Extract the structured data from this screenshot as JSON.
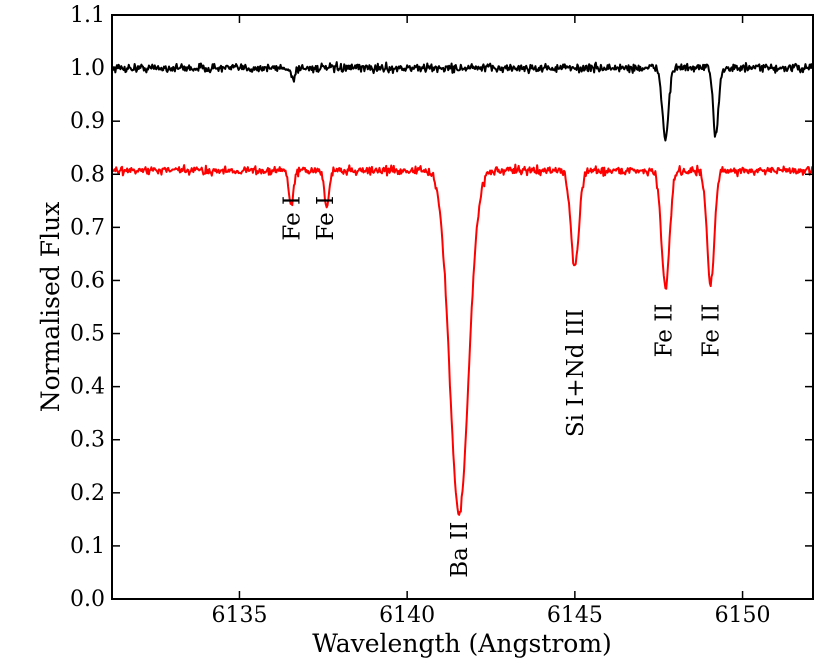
{
  "chart_data": {
    "type": "line",
    "title": "",
    "xlabel": "Wavelength (Angstrom)",
    "ylabel": "Normalised Flux",
    "xlim": [
      6131.2,
      6152.1
    ],
    "ylim": [
      0.0,
      1.1
    ],
    "x_ticks": [
      6135,
      6140,
      6145,
      6150
    ],
    "x_tick_labels": [
      "6135",
      "6140",
      "6145",
      "6150"
    ],
    "y_ticks": [
      0.0,
      0.1,
      0.2,
      0.3,
      0.4,
      0.5,
      0.6,
      0.7,
      0.8,
      0.9,
      1.0,
      1.1
    ],
    "y_tick_labels": [
      "0.0",
      "0.1",
      "0.2",
      "0.3",
      "0.4",
      "0.5",
      "0.6",
      "0.7",
      "0.8",
      "0.9",
      "1.0",
      "1.1"
    ],
    "grid": false,
    "series": [
      {
        "name": "upper spectrum",
        "color": "#000000",
        "continuum": 1.0,
        "noise": 0.008,
        "lines": [
          {
            "center": 6136.6,
            "depth": 0.02,
            "sigma": 0.06
          },
          {
            "center": 6147.7,
            "depth": 0.135,
            "sigma": 0.09
          },
          {
            "center": 6149.2,
            "depth": 0.125,
            "sigma": 0.08
          }
        ]
      },
      {
        "name": "lower spectrum",
        "color": "#ff0000",
        "continuum": 0.807,
        "noise": 0.008,
        "lines": [
          {
            "center": 6136.55,
            "depth": 0.065,
            "sigma": 0.07
          },
          {
            "center": 6137.6,
            "depth": 0.07,
            "sigma": 0.07
          },
          {
            "center": 6141.55,
            "depth": 0.645,
            "sigma": 0.28
          },
          {
            "center": 6145.0,
            "depth": 0.185,
            "sigma": 0.12
          },
          {
            "center": 6147.7,
            "depth": 0.22,
            "sigma": 0.12
          },
          {
            "center": 6149.05,
            "depth": 0.215,
            "sigma": 0.11
          }
        ]
      }
    ],
    "annotations": [
      {
        "text": "Fe I",
        "x": 6136.55,
        "y": 0.675
      },
      {
        "text": "Fe I",
        "x": 6137.55,
        "y": 0.675
      },
      {
        "text": "Ba II",
        "x": 6141.55,
        "y": 0.04
      },
      {
        "text": "Si I+Nd III",
        "x": 6145.0,
        "y": 0.305
      },
      {
        "text": "Fe II",
        "x": 6147.65,
        "y": 0.455
      },
      {
        "text": "Fe II",
        "x": 6149.05,
        "y": 0.455
      }
    ]
  }
}
